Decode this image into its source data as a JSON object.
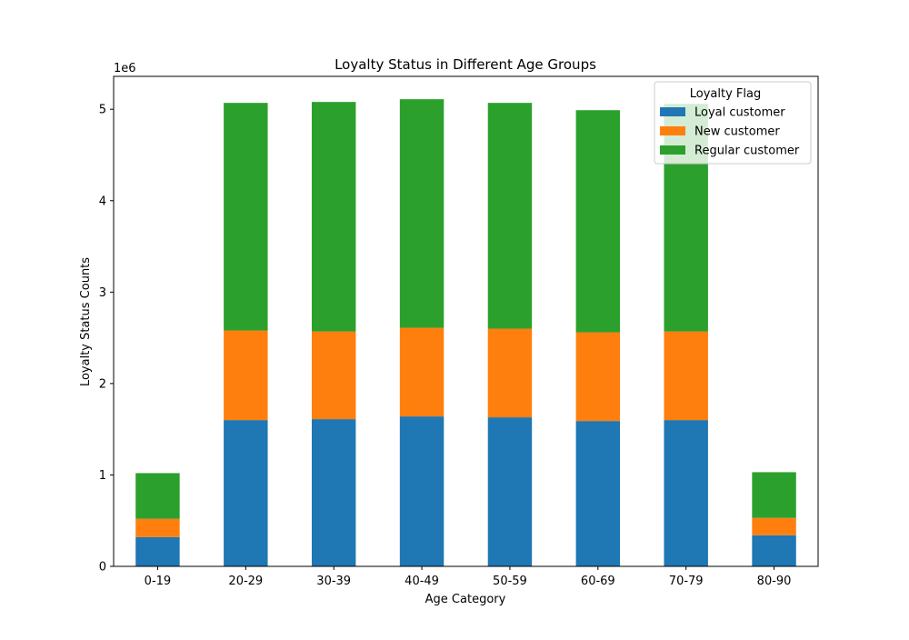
{
  "chart_data": {
    "type": "bar",
    "stacked": true,
    "title": "Loyalty Status in Different Age Groups",
    "xlabel": "Age Category",
    "ylabel": "Loyalty Status Counts",
    "y_multiplier_label": "1e6",
    "ylim": [
      0,
      5.36
    ],
    "yticks": [
      0,
      1,
      2,
      3,
      4,
      5
    ],
    "categories": [
      "0-19",
      "20-29",
      "30-39",
      "40-49",
      "50-59",
      "60-69",
      "70-79",
      "80-90"
    ],
    "series": [
      {
        "name": "Loyal customer",
        "color": "#1f77b4",
        "values": [
          0.32,
          1.6,
          1.61,
          1.64,
          1.63,
          1.59,
          1.6,
          0.34
        ]
      },
      {
        "name": "New customer",
        "color": "#ff7f0e",
        "values": [
          0.2,
          0.98,
          0.96,
          0.97,
          0.97,
          0.97,
          0.97,
          0.19
        ]
      },
      {
        "name": "Regular customer",
        "color": "#2ca02c",
        "values": [
          0.5,
          2.49,
          2.51,
          2.5,
          2.47,
          2.43,
          2.49,
          0.5
        ]
      }
    ],
    "legend": {
      "title": "Loyalty Flag",
      "position": "top-right"
    },
    "grid": false
  }
}
